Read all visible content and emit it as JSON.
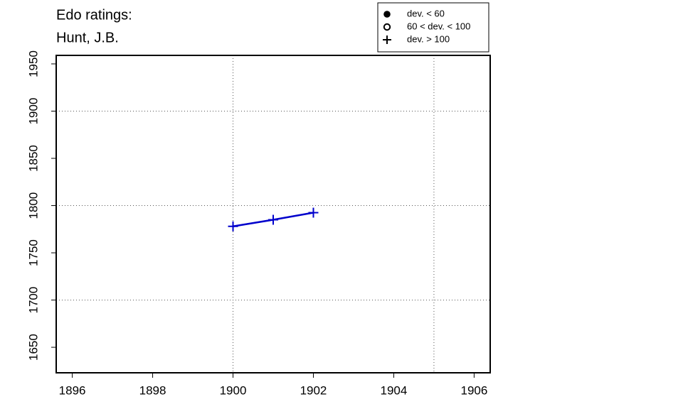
{
  "chart_data": {
    "type": "line",
    "title": "Edo ratings:",
    "subtitle": "Hunt, J.B.",
    "x": [
      1900,
      1901,
      1902
    ],
    "series": [
      {
        "color": "#0000cc",
        "marker": "plus",
        "values": [
          1778,
          1785,
          1792.5
        ]
      }
    ],
    "xlim": [
      1895.6,
      1906.4
    ],
    "xticks": [
      1896,
      1898,
      1900,
      1902,
      1904,
      1906
    ],
    "ylim": [
      1623,
      1959
    ],
    "yticks": [
      1650,
      1700,
      1750,
      1800,
      1850,
      1900,
      1950
    ],
    "xgrid": [
      1900,
      1905
    ],
    "ygrid": [
      1700,
      1800,
      1900
    ],
    "legend_position": "top-right",
    "legend": [
      {
        "label": "dev. < 60",
        "symbol": "filled-circle"
      },
      {
        "label": "60 < dev. < 100",
        "symbol": "open-circle"
      },
      {
        "label": "dev. > 100",
        "symbol": "plus"
      }
    ]
  }
}
